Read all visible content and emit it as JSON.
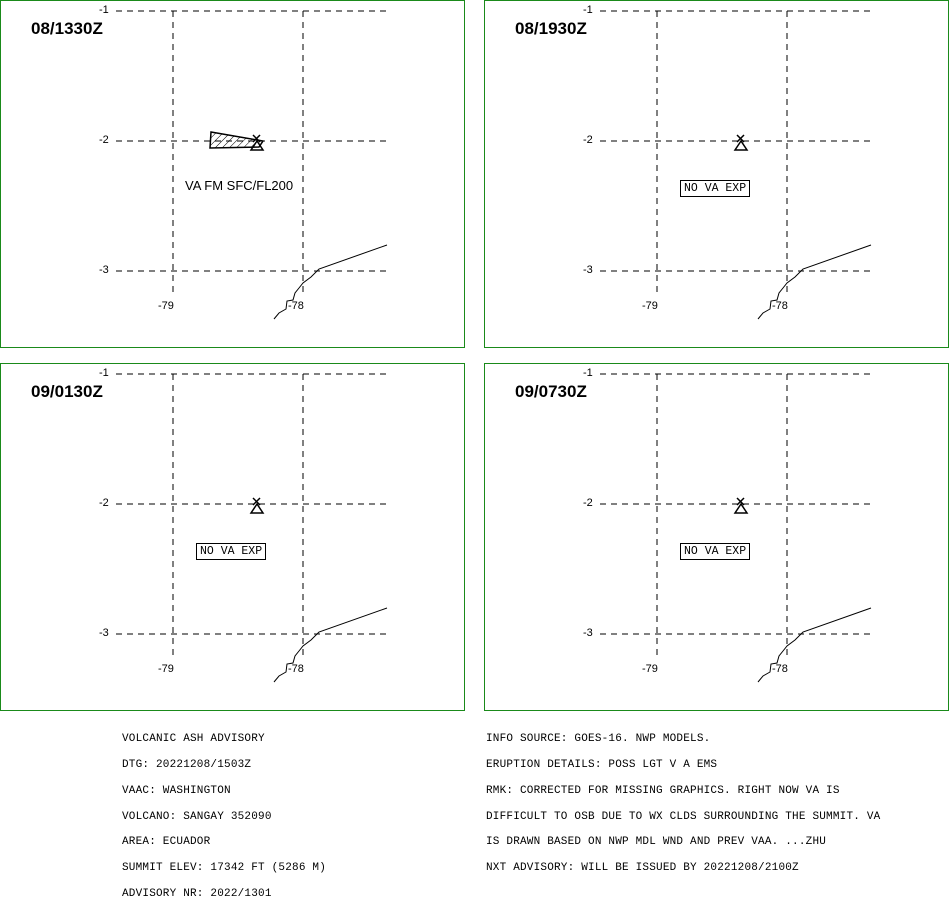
{
  "panels": [
    {
      "time": "08/1330Z",
      "label": "VA FM SFC/FL200",
      "no_va": ""
    },
    {
      "time": "08/1930Z",
      "label": "",
      "no_va": "NO VA EXP"
    },
    {
      "time": "09/0130Z",
      "label": "",
      "no_va": "NO VA EXP"
    },
    {
      "time": "09/0730Z",
      "label": "",
      "no_va": "NO VA EXP"
    }
  ],
  "axis": {
    "lat_labels": [
      "-1",
      "-2",
      "-3"
    ],
    "lon_labels": [
      "-79",
      "-78"
    ]
  },
  "advisory_left": [
    "VOLCANIC ASH ADVISORY",
    "DTG: 20221208/1503Z",
    "VAAC: WASHINGTON",
    "VOLCANO: SANGAY 352090",
    "AREA: ECUADOR",
    "SUMMIT ELEV: 17342 FT (5286 M)",
    "ADVISORY NR: 2022/1301"
  ],
  "advisory_right": [
    "INFO SOURCE: GOES-16. NWP MODELS.",
    "ERUPTION DETAILS: POSS LGT V A EMS",
    "RMK: CORRECTED FOR MISSING GRAPHICS. RIGHT NOW VA IS",
    "DIFFICULT TO OSB DUE TO WX CLDS SURROUNDING THE SUMMIT. VA",
    "IS DRAWN BASED ON NWP MDL WND AND PREV VAA. ...ZHU",
    "NXT ADVISORY: WILL BE ISSUED BY 20221208/2100Z"
  ],
  "colors": {
    "panel_border": "#1a8a1a"
  }
}
